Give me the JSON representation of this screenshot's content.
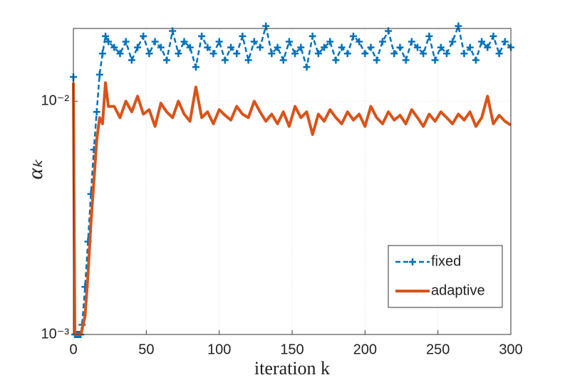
{
  "chart_data": {
    "type": "line",
    "xlabel": "iteration k",
    "ylabel": "αₖ",
    "x": [
      0,
      1,
      2,
      3,
      4,
      5,
      6,
      8,
      10,
      12,
      14,
      16,
      18,
      20,
      22,
      24,
      28,
      32,
      36,
      40,
      44,
      48,
      52,
      56,
      60,
      64,
      68,
      72,
      76,
      80,
      84,
      88,
      92,
      96,
      100,
      104,
      108,
      112,
      116,
      120,
      124,
      128,
      132,
      136,
      140,
      144,
      148,
      152,
      156,
      160,
      164,
      168,
      172,
      176,
      180,
      184,
      188,
      192,
      196,
      200,
      204,
      208,
      212,
      216,
      220,
      224,
      228,
      232,
      236,
      240,
      244,
      248,
      252,
      256,
      260,
      264,
      268,
      272,
      276,
      280,
      284,
      288,
      292,
      296,
      300
    ],
    "series": [
      {
        "name": "fixed",
        "color": "#0072bd",
        "linestyle": "dashed",
        "marker": "+",
        "values": [
          0.0127,
          0.001,
          0.001,
          0.001,
          0.001,
          0.001,
          0.0011,
          0.0016,
          0.0025,
          0.004,
          0.0062,
          0.009,
          0.013,
          0.016,
          0.019,
          0.018,
          0.017,
          0.016,
          0.018,
          0.015,
          0.017,
          0.019,
          0.016,
          0.018,
          0.017,
          0.015,
          0.02,
          0.016,
          0.018,
          0.017,
          0.014,
          0.019,
          0.017,
          0.016,
          0.018,
          0.015,
          0.017,
          0.016,
          0.019,
          0.015,
          0.018,
          0.017,
          0.021,
          0.016,
          0.017,
          0.015,
          0.018,
          0.016,
          0.017,
          0.014,
          0.019,
          0.016,
          0.017,
          0.018,
          0.015,
          0.017,
          0.016,
          0.019,
          0.018,
          0.016,
          0.017,
          0.015,
          0.018,
          0.02,
          0.016,
          0.017,
          0.015,
          0.018,
          0.017,
          0.016,
          0.019,
          0.015,
          0.017,
          0.016,
          0.018,
          0.021,
          0.016,
          0.017,
          0.015,
          0.018,
          0.017,
          0.019,
          0.016,
          0.018,
          0.017
        ]
      },
      {
        "name": "adaptive",
        "color": "#d95319",
        "linestyle": "solid",
        "marker": "none",
        "values": [
          0.012,
          0.001,
          0.001,
          0.001,
          0.001,
          0.001,
          0.00105,
          0.0012,
          0.0018,
          0.003,
          0.0045,
          0.0068,
          0.0085,
          0.008,
          0.012,
          0.0095,
          0.0095,
          0.0085,
          0.01,
          0.009,
          0.0105,
          0.0088,
          0.0092,
          0.0078,
          0.0098,
          0.009,
          0.0085,
          0.01,
          0.0088,
          0.0082,
          0.0115,
          0.0085,
          0.009,
          0.008,
          0.0092,
          0.0087,
          0.0083,
          0.0095,
          0.0088,
          0.0085,
          0.01,
          0.009,
          0.0082,
          0.0088,
          0.008,
          0.009,
          0.0078,
          0.0095,
          0.0085,
          0.009,
          0.0072,
          0.0088,
          0.0082,
          0.0092,
          0.0085,
          0.008,
          0.009,
          0.0083,
          0.0088,
          0.0078,
          0.0095,
          0.0085,
          0.008,
          0.009,
          0.0083,
          0.0087,
          0.008,
          0.0092,
          0.0085,
          0.0078,
          0.0088,
          0.0082,
          0.009,
          0.0085,
          0.008,
          0.0088,
          0.0083,
          0.009,
          0.0078,
          0.0085,
          0.0105,
          0.008,
          0.0087,
          0.0082,
          0.0079
        ]
      }
    ],
    "xlim": [
      0,
      300
    ],
    "xticks": [
      0,
      50,
      100,
      150,
      200,
      250,
      300
    ],
    "ylim": [
      0.001,
      0.0205
    ],
    "ylog": true,
    "yticks": [
      {
        "value": 0.001,
        "label": "10⁻³"
      },
      {
        "value": 0.01,
        "label": "10⁻²"
      }
    ],
    "grid": true,
    "legend": "southeast"
  }
}
